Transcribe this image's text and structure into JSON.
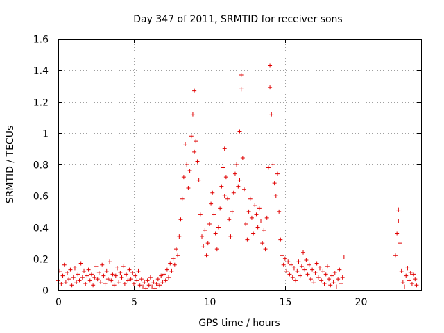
{
  "chart_data": {
    "type": "scatter",
    "title": "Day 347 of 2011, SRMTID for receiver sons",
    "xlabel": "GPS time / hours",
    "ylabel": "SRMTID / TECUs",
    "xlim": [
      0,
      24
    ],
    "ylim": [
      0,
      1.6
    ],
    "x_ticks": [
      0,
      5,
      10,
      15,
      20
    ],
    "x_tick_labels": [
      "0",
      "5",
      "10",
      "15",
      "20"
    ],
    "y_ticks": [
      0,
      0.2,
      0.4,
      0.6,
      0.8,
      1.0,
      1.2,
      1.4,
      1.6
    ],
    "y_tick_labels": [
      "0",
      "0.2",
      "0.4",
      "0.6",
      "0.8",
      "1",
      "1.2",
      "1.4",
      "1.6"
    ],
    "grid": true,
    "marker": "+",
    "marker_color": "#e00000",
    "series": [
      {
        "name": "SRMTID",
        "points": [
          [
            0.0,
            0.06
          ],
          [
            0.1,
            0.12
          ],
          [
            0.2,
            0.04
          ],
          [
            0.3,
            0.09
          ],
          [
            0.4,
            0.16
          ],
          [
            0.5,
            0.05
          ],
          [
            0.6,
            0.11
          ],
          [
            0.7,
            0.07
          ],
          [
            0.8,
            0.13
          ],
          [
            0.9,
            0.03
          ],
          [
            1.0,
            0.08
          ],
          [
            1.1,
            0.14
          ],
          [
            1.2,
            0.05
          ],
          [
            1.3,
            0.1
          ],
          [
            1.4,
            0.06
          ],
          [
            1.5,
            0.17
          ],
          [
            1.6,
            0.08
          ],
          [
            1.7,
            0.12
          ],
          [
            1.8,
            0.04
          ],
          [
            1.9,
            0.09
          ],
          [
            2.0,
            0.13
          ],
          [
            2.1,
            0.06
          ],
          [
            2.2,
            0.1
          ],
          [
            2.3,
            0.03
          ],
          [
            2.4,
            0.08
          ],
          [
            2.5,
            0.15
          ],
          [
            2.6,
            0.07
          ],
          [
            2.7,
            0.11
          ],
          [
            2.8,
            0.05
          ],
          [
            2.9,
            0.16
          ],
          [
            3.0,
            0.09
          ],
          [
            3.1,
            0.04
          ],
          [
            3.2,
            0.12
          ],
          [
            3.3,
            0.07
          ],
          [
            3.4,
            0.18
          ],
          [
            3.5,
            0.06
          ],
          [
            3.6,
            0.1
          ],
          [
            3.7,
            0.03
          ],
          [
            3.8,
            0.09
          ],
          [
            3.9,
            0.14
          ],
          [
            4.0,
            0.05
          ],
          [
            4.1,
            0.11
          ],
          [
            4.2,
            0.08
          ],
          [
            4.3,
            0.15
          ],
          [
            4.4,
            0.04
          ],
          [
            4.5,
            0.1
          ],
          [
            4.6,
            0.06
          ],
          [
            4.7,
            0.13
          ],
          [
            4.8,
            0.07
          ],
          [
            4.9,
            0.11
          ],
          [
            5.0,
            0.04
          ],
          [
            5.1,
            0.09
          ],
          [
            5.2,
            0.06
          ],
          [
            5.3,
            0.12
          ],
          [
            5.4,
            0.03
          ],
          [
            5.5,
            0.07
          ],
          [
            5.6,
            0.02
          ],
          [
            5.7,
            0.05
          ],
          [
            5.8,
            0.01
          ],
          [
            5.9,
            0.06
          ],
          [
            6.0,
            0.03
          ],
          [
            6.1,
            0.08
          ],
          [
            6.2,
            0.02
          ],
          [
            6.3,
            0.05
          ],
          [
            6.4,
            0.01
          ],
          [
            6.5,
            0.04
          ],
          [
            6.6,
            0.07
          ],
          [
            6.7,
            0.03
          ],
          [
            6.8,
            0.09
          ],
          [
            6.9,
            0.05
          ],
          [
            7.0,
            0.1
          ],
          [
            7.1,
            0.06
          ],
          [
            7.2,
            0.13
          ],
          [
            7.3,
            0.08
          ],
          [
            7.4,
            0.17
          ],
          [
            7.5,
            0.12
          ],
          [
            7.6,
            0.2
          ],
          [
            7.7,
            0.16
          ],
          [
            7.8,
            0.26
          ],
          [
            7.9,
            0.22
          ],
          [
            8.0,
            0.34
          ],
          [
            8.1,
            0.45
          ],
          [
            8.2,
            0.58
          ],
          [
            8.3,
            0.72
          ],
          [
            8.4,
            0.93
          ],
          [
            8.5,
            0.8
          ],
          [
            8.6,
            0.65
          ],
          [
            8.7,
            0.76
          ],
          [
            8.8,
            0.98
          ],
          [
            8.9,
            1.12
          ],
          [
            9.0,
            1.27
          ],
          [
            9.0,
            0.88
          ],
          [
            9.1,
            0.95
          ],
          [
            9.2,
            0.82
          ],
          [
            9.3,
            0.7
          ],
          [
            9.4,
            0.48
          ],
          [
            9.5,
            0.34
          ],
          [
            9.6,
            0.28
          ],
          [
            9.7,
            0.38
          ],
          [
            9.8,
            0.22
          ],
          [
            9.9,
            0.3
          ],
          [
            10.0,
            0.42
          ],
          [
            10.1,
            0.55
          ],
          [
            10.2,
            0.62
          ],
          [
            10.3,
            0.48
          ],
          [
            10.4,
            0.36
          ],
          [
            10.5,
            0.26
          ],
          [
            10.6,
            0.4
          ],
          [
            10.7,
            0.52
          ],
          [
            10.8,
            0.66
          ],
          [
            10.9,
            0.78
          ],
          [
            11.0,
            0.9
          ],
          [
            11.0,
            0.6
          ],
          [
            11.1,
            0.72
          ],
          [
            11.2,
            0.58
          ],
          [
            11.3,
            0.45
          ],
          [
            11.4,
            0.34
          ],
          [
            11.5,
            0.5
          ],
          [
            11.6,
            0.62
          ],
          [
            11.7,
            0.74
          ],
          [
            11.8,
            0.8
          ],
          [
            11.9,
            0.66
          ],
          [
            12.0,
            1.01
          ],
          [
            12.0,
            0.7
          ],
          [
            12.1,
            1.37
          ],
          [
            12.1,
            1.28
          ],
          [
            12.2,
            0.84
          ],
          [
            12.3,
            0.64
          ],
          [
            12.4,
            0.42
          ],
          [
            12.5,
            0.32
          ],
          [
            12.6,
            0.5
          ],
          [
            12.7,
            0.58
          ],
          [
            12.8,
            0.46
          ],
          [
            12.9,
            0.36
          ],
          [
            13.0,
            0.54
          ],
          [
            13.1,
            0.48
          ],
          [
            13.2,
            0.4
          ],
          [
            13.3,
            0.52
          ],
          [
            13.4,
            0.44
          ],
          [
            13.5,
            0.3
          ],
          [
            13.6,
            0.38
          ],
          [
            13.7,
            0.26
          ],
          [
            13.8,
            0.46
          ],
          [
            13.9,
            0.78
          ],
          [
            14.0,
            1.43
          ],
          [
            14.0,
            1.29
          ],
          [
            14.1,
            1.12
          ],
          [
            14.2,
            0.8
          ],
          [
            14.3,
            0.68
          ],
          [
            14.4,
            0.6
          ],
          [
            14.5,
            0.74
          ],
          [
            14.6,
            0.5
          ],
          [
            14.7,
            0.32
          ],
          [
            14.8,
            0.22
          ],
          [
            14.9,
            0.16
          ],
          [
            15.0,
            0.2
          ],
          [
            15.1,
            0.12
          ],
          [
            15.2,
            0.18
          ],
          [
            15.3,
            0.1
          ],
          [
            15.4,
            0.16
          ],
          [
            15.5,
            0.08
          ],
          [
            15.6,
            0.14
          ],
          [
            15.7,
            0.06
          ],
          [
            15.8,
            0.12
          ],
          [
            15.9,
            0.18
          ],
          [
            16.0,
            0.09
          ],
          [
            16.1,
            0.15
          ],
          [
            16.2,
            0.24
          ],
          [
            16.3,
            0.13
          ],
          [
            16.4,
            0.19
          ],
          [
            16.5,
            0.1
          ],
          [
            16.6,
            0.16
          ],
          [
            16.7,
            0.07
          ],
          [
            16.8,
            0.13
          ],
          [
            16.9,
            0.05
          ],
          [
            17.0,
            0.11
          ],
          [
            17.1,
            0.17
          ],
          [
            17.2,
            0.08
          ],
          [
            17.3,
            0.14
          ],
          [
            17.4,
            0.06
          ],
          [
            17.5,
            0.12
          ],
          [
            17.6,
            0.04
          ],
          [
            17.7,
            0.1
          ],
          [
            17.8,
            0.15
          ],
          [
            17.9,
            0.07
          ],
          [
            18.0,
            0.03
          ],
          [
            18.1,
            0.09
          ],
          [
            18.2,
            0.05
          ],
          [
            18.3,
            0.11
          ],
          [
            18.4,
            0.02
          ],
          [
            18.5,
            0.07
          ],
          [
            18.6,
            0.13
          ],
          [
            18.7,
            0.04
          ],
          [
            18.8,
            0.08
          ],
          [
            18.9,
            0.21
          ],
          [
            22.3,
            0.22
          ],
          [
            22.4,
            0.36
          ],
          [
            22.5,
            0.51
          ],
          [
            22.5,
            0.44
          ],
          [
            22.6,
            0.3
          ],
          [
            22.7,
            0.12
          ],
          [
            22.8,
            0.05
          ],
          [
            22.9,
            0.02
          ],
          [
            23.0,
            0.09
          ],
          [
            23.1,
            0.14
          ],
          [
            23.2,
            0.06
          ],
          [
            23.3,
            0.11
          ],
          [
            23.4,
            0.04
          ],
          [
            23.5,
            0.1
          ],
          [
            23.6,
            0.07
          ],
          [
            23.7,
            0.03
          ]
        ]
      }
    ]
  }
}
